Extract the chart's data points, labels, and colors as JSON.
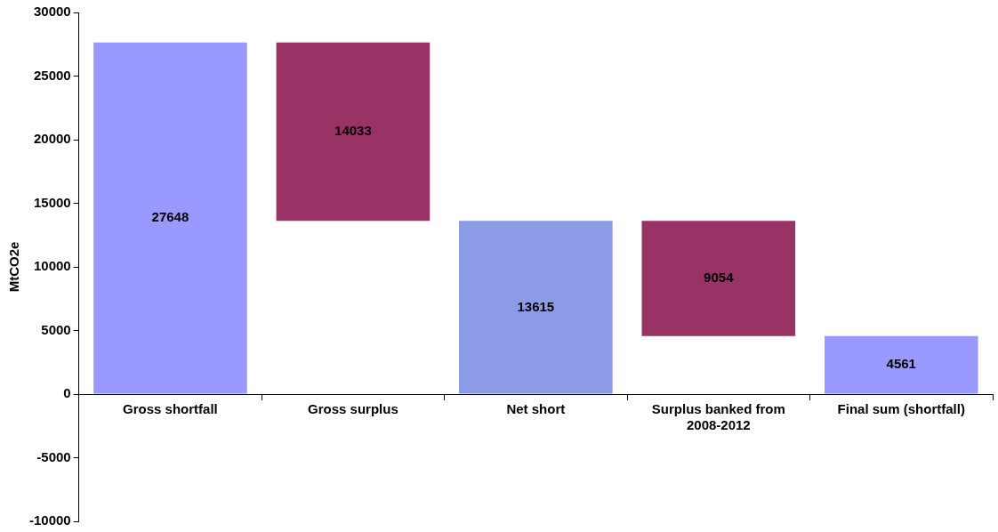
{
  "chart_data": {
    "type": "bar",
    "ylabel": "MtCO2e",
    "categories": [
      "Gross shortfall",
      "Gross surplus",
      "Net short",
      "Surplus banked from 2008-2012",
      "Final sum (shortfall)"
    ],
    "values": [
      27648,
      14033,
      13615,
      9054,
      4561
    ],
    "base": [
      0,
      13615,
      0,
      4561,
      0
    ],
    "colors": [
      "#9999ff",
      "#993366",
      "#8c9be6",
      "#993366",
      "#9999ff"
    ],
    "data_labels": true,
    "grid": false,
    "legend": false,
    "ylim": [
      -10000,
      30000
    ],
    "yticks": [
      -10000,
      -5000,
      0,
      5000,
      10000,
      15000,
      20000,
      25000,
      30000
    ]
  }
}
